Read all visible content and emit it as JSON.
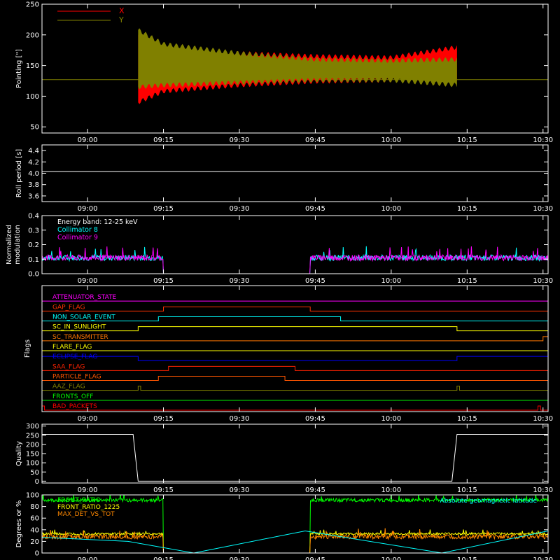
{
  "time_axis": {
    "ticks": [
      "09:00",
      "09:15",
      "09:30",
      "09:45",
      "10:00",
      "10:15",
      "10:30"
    ]
  },
  "chart_data": [
    {
      "type": "line",
      "ylabel": "Pointing [\"]",
      "ylim": [
        40,
        250
      ],
      "yticks": [
        50,
        100,
        150,
        200,
        250
      ],
      "legend": {
        "placement": "top-left",
        "entries": [
          {
            "name": "X",
            "color": "#ff0000"
          },
          {
            "name": "Y",
            "color": "#808000"
          }
        ]
      },
      "reference_level": 127,
      "series": [
        {
          "name": "X",
          "color": "#ff0000",
          "start": "09:10",
          "end": "10:13",
          "x": [
            "09:10",
            "09:15",
            "09:30",
            "09:45",
            "10:00",
            "10:13"
          ],
          "upper": [
            200,
            180,
            170,
            165,
            163,
            180
          ],
          "lower": [
            90,
            108,
            118,
            124,
            126,
            128
          ]
        },
        {
          "name": "Y",
          "color": "#808000",
          "start": "09:10",
          "end": "10:13",
          "x": [
            "09:10",
            "09:15",
            "09:30",
            "09:45",
            "10:00",
            "10:13"
          ],
          "upper": [
            208,
            185,
            170,
            160,
            158,
            160
          ],
          "lower": [
            115,
            118,
            122,
            126,
            126,
            118
          ]
        }
      ]
    },
    {
      "type": "line",
      "ylabel": "Roll period [s]",
      "ylim": [
        3.5,
        4.5
      ],
      "yticks": [
        3.6,
        3.8,
        4.0,
        4.2,
        4.4
      ],
      "series": [
        {
          "name": "",
          "color": "#ffffff",
          "value": 4.03
        }
      ]
    },
    {
      "type": "line",
      "ylabel": "Normalized modulation",
      "ylabel_lines": [
        "Normalized",
        "modulation"
      ],
      "ylim": [
        0,
        0.4
      ],
      "yticks": [
        0.0,
        0.1,
        0.2,
        0.3,
        0.4
      ],
      "legend_lines": [
        {
          "text": "Energy band: 12-25 keV",
          "color": "#ffffff"
        },
        {
          "text": "Collimator 8",
          "color": "#00ffff"
        },
        {
          "text": "Collimator 9",
          "color": "#ff00ff"
        }
      ],
      "gap": {
        "start": "09:15",
        "end": "09:44"
      },
      "series": [
        {
          "name": "Collimator 8",
          "color": "#00ffff",
          "mean": 0.11,
          "spread": 0.02
        },
        {
          "name": "Collimator 9",
          "color": "#ff00ff",
          "mean": 0.11,
          "spread": 0.02
        }
      ]
    },
    {
      "type": "line",
      "ylabel": "Flags",
      "flags": [
        {
          "name": "ATTENUATOR_STATE",
          "color": "#ff00ff",
          "on": []
        },
        {
          "name": "GAP_FLAG",
          "color": "#ff3300",
          "on": [
            [
              "09:15",
              "09:44"
            ]
          ]
        },
        {
          "name": "NON_SOLAR_EVENT",
          "color": "#00ffff",
          "on": [
            [
              "09:14",
              "09:50"
            ]
          ]
        },
        {
          "name": "SC_IN_SUNLIGHT",
          "color": "#ffff00",
          "on": [
            [
              "09:10",
              "10:13"
            ]
          ]
        },
        {
          "name": "SC_TRANSMITTER",
          "color": "#ff7700",
          "on": [
            [
              "10:30",
              "10:31"
            ]
          ]
        },
        {
          "name": "FLARE_FLAG",
          "color": "#ffff00",
          "on": []
        },
        {
          "name": "ECLIPSE_FLAG",
          "color": "#0000ff",
          "on": [
            [
              "08:51",
              "09:10"
            ],
            [
              "10:13",
              "10:31"
            ]
          ]
        },
        {
          "name": "SAA_FLAG",
          "color": "#ff2200",
          "on": [
            [
              "09:16",
              "09:41"
            ]
          ]
        },
        {
          "name": "PARTICLE_FLAG",
          "color": "#ff5500",
          "on": [
            [
              "09:14",
              "09:39"
            ]
          ]
        },
        {
          "name": "AAZ_FLAG",
          "color": "#808000",
          "on": [
            [
              "09:10",
              "09:10.5"
            ],
            [
              "10:13",
              "10:13.5"
            ]
          ]
        },
        {
          "name": "FRONTS_OFF",
          "color": "#00ff00",
          "on": []
        },
        {
          "name": "BAD_PACKETS",
          "color": "#ff0000",
          "on": [
            [
              "08:51",
              "08:51.5"
            ],
            [
              "10:29",
              "10:29.5"
            ]
          ]
        }
      ]
    },
    {
      "type": "line",
      "ylabel": "Quality",
      "ylim": [
        -10,
        310
      ],
      "yticks": [
        0,
        50,
        100,
        150,
        200,
        250,
        300
      ],
      "series": [
        {
          "name": "",
          "color": "#ffffff",
          "x": [
            "08:51",
            "09:09",
            "09:10",
            "10:12",
            "10:13",
            "10:31"
          ],
          "values": [
            255,
            255,
            0,
            0,
            255,
            255
          ]
        }
      ]
    },
    {
      "type": "line",
      "ylabel": "Degrees or %",
      "ylim": [
        0,
        100
      ],
      "yticks": [
        0,
        20,
        40,
        60,
        80,
        100
      ],
      "legend_left": [
        {
          "text": "FRONT_RATIO",
          "color": "#00ff00"
        },
        {
          "text": "FRONT_RATIO_1225",
          "color": "#ffff00"
        },
        {
          "text": "MAX_DET_VS_TOT",
          "color": "#ff8800"
        }
      ],
      "legend_right": {
        "text": "Absolute geomagnetic latitude",
        "color": "#00ffff"
      },
      "gap": {
        "start": "09:15",
        "end": "09:44"
      },
      "series": [
        {
          "name": "FRONT_RATIO",
          "color": "#00ff00",
          "mean": 91,
          "spread": 3
        },
        {
          "name": "FRONT_RATIO_1225",
          "color": "#ffff00",
          "mean": 33,
          "spread": 2
        },
        {
          "name": "MAX_DET_VS_TOT",
          "color": "#ff8800",
          "mean": 28,
          "spread": 4
        },
        {
          "name": "Absolute geomagnetic latitude",
          "color": "#00ffff",
          "x": [
            "08:51",
            "09:08",
            "09:21",
            "09:43",
            "10:10",
            "10:31"
          ],
          "values": [
            27,
            20,
            0,
            38,
            0,
            38
          ]
        }
      ]
    }
  ]
}
